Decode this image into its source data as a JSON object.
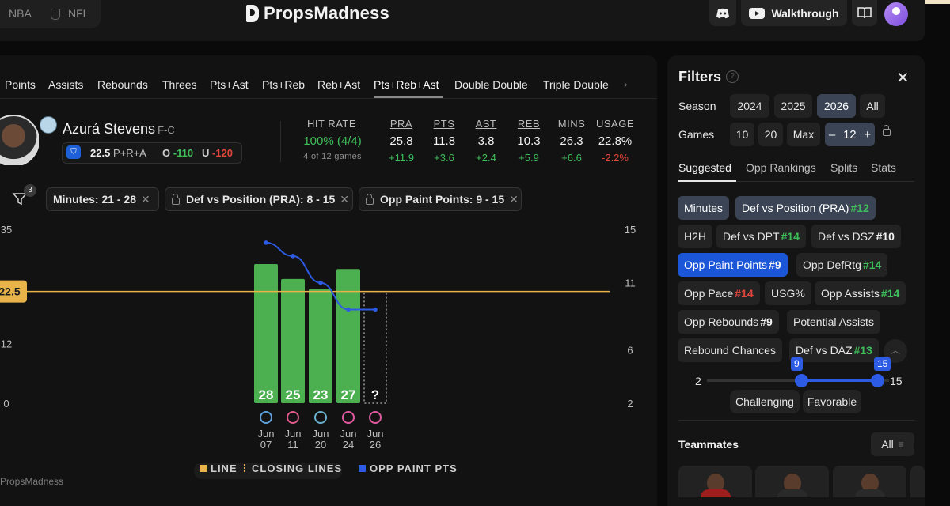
{
  "topbar": {
    "sports": [
      "NBA",
      "NFL"
    ],
    "logo_text": "PropsMadness",
    "walkthrough_label": "Walkthrough"
  },
  "tabs": [
    "Points",
    "Assists",
    "Rebounds",
    "Threes",
    "Pts+Ast",
    "Pts+Reb",
    "Reb+Ast",
    "Pts+Reb+Ast",
    "Double Double",
    "Triple Double"
  ],
  "active_tab": "Pts+Reb+Ast",
  "player": {
    "name": "Azurá Stevens",
    "position": "F-C",
    "line": "22.5",
    "line_category": "P+R+A",
    "over_label": "O",
    "over_odds": "-110",
    "under_label": "U",
    "under_odds": "-120"
  },
  "stats": {
    "hit_rate_label": "HIT RATE",
    "hit_rate_value": "100% (4/4)",
    "hit_rate_sub": "4 of 12 games",
    "columns": [
      {
        "label": "PRA",
        "value": "25.8",
        "delta": "+11.9"
      },
      {
        "label": "PTS",
        "value": "11.8",
        "delta": "+3.6"
      },
      {
        "label": "AST",
        "value": "3.8",
        "delta": "+2.4"
      },
      {
        "label": "REB",
        "value": "10.3",
        "delta": "+5.9"
      },
      {
        "label": "MINS",
        "value": "26.3",
        "delta": "+6.6"
      },
      {
        "label": "USAGE",
        "value": "22.8%",
        "delta": "-2.2%"
      }
    ]
  },
  "active_filters": {
    "count": "3",
    "chips": [
      "Minutes: 21 - 28",
      "Def vs Position (PRA): 8 - 15",
      "Opp Paint Points: 9 - 15"
    ]
  },
  "chart_data": {
    "type": "bar",
    "categories": [
      "Jun 07",
      "Jun 11",
      "Jun 20",
      "Jun 24",
      "Jun 26"
    ],
    "values": [
      28,
      25,
      23,
      27,
      null
    ],
    "value_labels": [
      "28",
      "25",
      "23",
      "27",
      "?"
    ],
    "line_value": 22.5,
    "line_label": "22.5",
    "left_ticks": [
      "35",
      "22.5",
      "12",
      "0"
    ],
    "right_ticks": [
      "15",
      "11",
      "6",
      "2"
    ],
    "opp_paint_pts": [
      14,
      13,
      11,
      9,
      9
    ],
    "bar_color": "#4caf50",
    "line_color": "#e8b44a",
    "paint_color": "#2d5be3",
    "date_month": [
      "Jun",
      "Jun",
      "Jun",
      "Jun",
      "Jun"
    ],
    "date_day": [
      "07",
      "11",
      "20",
      "24",
      "26"
    ]
  },
  "legend": {
    "line": "LINE",
    "closing": "CLOSING LINES",
    "paint": "OPP PAINT PTS"
  },
  "watermark": "PropsMadness",
  "sidebar": {
    "title": "Filters",
    "season_label": "Season",
    "seasons": [
      "2024",
      "2025",
      "2026",
      "All"
    ],
    "selected_season": "2026",
    "games_label": "Games",
    "games": [
      "10",
      "20",
      "Max"
    ],
    "games_stepper": {
      "minus": "–",
      "value": "12",
      "plus": "+"
    },
    "subtabs": [
      "Suggested",
      "Opp Rankings",
      "Splits",
      "Stats"
    ],
    "filters": [
      {
        "label": "Minutes",
        "rank": ""
      },
      {
        "label": "Def vs Position (PRA)",
        "rank": "#12"
      },
      {
        "label": "H2H",
        "rank": ""
      },
      {
        "label": "Def vs DPT",
        "rank": "#14"
      },
      {
        "label": "Def vs DSZ",
        "rank": "#10"
      },
      {
        "label": "Opp Paint Points",
        "rank": "#9"
      },
      {
        "label": "Opp DefRtg",
        "rank": "#14"
      },
      {
        "label": "Opp Pace",
        "rank": "#14"
      },
      {
        "label": "USG%",
        "rank": ""
      },
      {
        "label": "Opp Assists",
        "rank": "#14"
      },
      {
        "label": "Opp Rebounds",
        "rank": "#9"
      },
      {
        "label": "Potential Assists",
        "rank": ""
      },
      {
        "label": "Rebound Chances",
        "rank": ""
      },
      {
        "label": "Def vs DAZ",
        "rank": "#13"
      }
    ],
    "slider": {
      "min": "2",
      "max": "15",
      "low": "9",
      "high": "15"
    },
    "slider_fraction": {
      "low": 0.54,
      "high": 1.0
    },
    "options": [
      "Challenging",
      "Favorable"
    ],
    "teammates_label": "Teammates",
    "teammates_filter": "All"
  }
}
